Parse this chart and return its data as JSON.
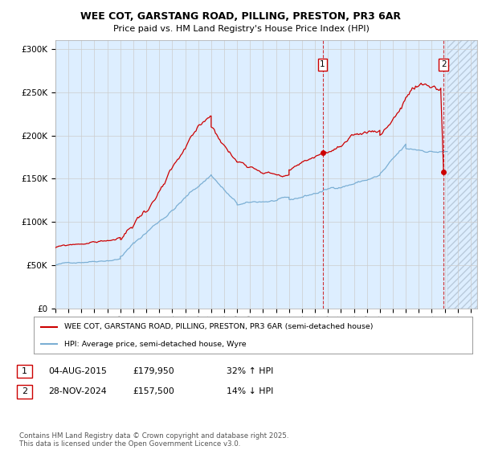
{
  "title_line1": "WEE COT, GARSTANG ROAD, PILLING, PRESTON, PR3 6AR",
  "title_line2": "Price paid vs. HM Land Registry's House Price Index (HPI)",
  "ylabel_ticks": [
    "£0",
    "£50K",
    "£100K",
    "£150K",
    "£200K",
    "£250K",
    "£300K"
  ],
  "ylabel_values": [
    0,
    50000,
    100000,
    150000,
    200000,
    250000,
    300000
  ],
  "ylim": [
    0,
    310000
  ],
  "xlim_start": 1995.0,
  "xlim_end": 2027.5,
  "red_line_color": "#cc0000",
  "blue_line_color": "#7bafd4",
  "bg_fill_color": "#ddeeff",
  "marker1_date": 2015.585,
  "marker1_value": 179950,
  "marker2_date": 2024.91,
  "marker2_value": 157500,
  "hpi_end_date": 2025.2,
  "future_start": 2025.2,
  "legend_red": "WEE COT, GARSTANG ROAD, PILLING, PRESTON, PR3 6AR (semi-detached house)",
  "legend_blue": "HPI: Average price, semi-detached house, Wyre",
  "annotation1_date": "04-AUG-2015",
  "annotation1_price": "£179,950",
  "annotation1_hpi": "32% ↑ HPI",
  "annotation2_date": "28-NOV-2024",
  "annotation2_price": "£157,500",
  "annotation2_hpi": "14% ↓ HPI",
  "footnote": "Contains HM Land Registry data © Crown copyright and database right 2025.\nThis data is licensed under the Open Government Licence v3.0.",
  "background_color": "#ffffff",
  "grid_color": "#cccccc"
}
